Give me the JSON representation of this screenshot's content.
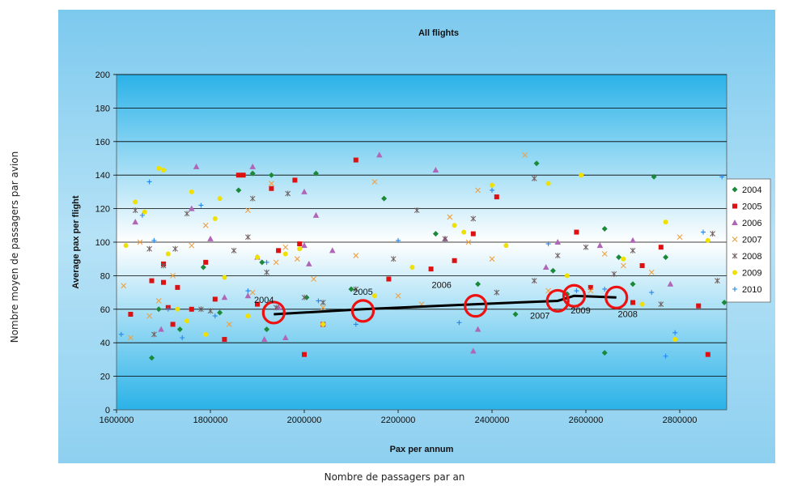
{
  "outer_labels": {
    "y": "Nombre moyen de passagers par avion",
    "x": "Nombre de passagers par an"
  },
  "chart_data": {
    "type": "scatter",
    "title": "All flights",
    "xlabel": "Pax per annum",
    "ylabel": "Average pax per flight",
    "xlim": [
      1600000,
      2900000
    ],
    "ylim": [
      0,
      200
    ],
    "xticks": [
      1600000,
      1800000,
      2000000,
      2200000,
      2400000,
      2600000,
      2800000
    ],
    "yticks": [
      0,
      20,
      40,
      60,
      80,
      100,
      120,
      140,
      160,
      180,
      200
    ],
    "grid": "horizontal",
    "legend_position": "right",
    "series": [
      {
        "name": "2004",
        "color": "#1a8a3a",
        "marker": "diamond",
        "points": [
          [
            1675000,
            31
          ],
          [
            1690000,
            60
          ],
          [
            1735000,
            48
          ],
          [
            1785000,
            85
          ],
          [
            1820000,
            58
          ],
          [
            1860000,
            131
          ],
          [
            1890000,
            141
          ],
          [
            1910000,
            88
          ],
          [
            1920000,
            48
          ],
          [
            1930000,
            140
          ],
          [
            2005000,
            67
          ],
          [
            2025000,
            141
          ],
          [
            2100000,
            72
          ],
          [
            2170000,
            126
          ],
          [
            2280000,
            105
          ],
          [
            2370000,
            75
          ],
          [
            2450000,
            57
          ],
          [
            2495000,
            147
          ],
          [
            2530000,
            83
          ],
          [
            2560000,
            69
          ],
          [
            2640000,
            108
          ],
          [
            2640000,
            34
          ],
          [
            2670000,
            91
          ],
          [
            2700000,
            75
          ],
          [
            2745000,
            139
          ],
          [
            2770000,
            91
          ],
          [
            2895000,
            64
          ]
        ]
      },
      {
        "name": "2005",
        "color": "#dd1111",
        "marker": "square",
        "points": [
          [
            1630000,
            57
          ],
          [
            1675000,
            77
          ],
          [
            1700000,
            87
          ],
          [
            1700000,
            76
          ],
          [
            1710000,
            61
          ],
          [
            1720000,
            51
          ],
          [
            1730000,
            73
          ],
          [
            1760000,
            60
          ],
          [
            1790000,
            88
          ],
          [
            1810000,
            66
          ],
          [
            1830000,
            42
          ],
          [
            1860000,
            140
          ],
          [
            1870000,
            140
          ],
          [
            1900000,
            63
          ],
          [
            1930000,
            132
          ],
          [
            1945000,
            95
          ],
          [
            1980000,
            137
          ],
          [
            1990000,
            99
          ],
          [
            2000000,
            33
          ],
          [
            2040000,
            51
          ],
          [
            2110000,
            149
          ],
          [
            2180000,
            78
          ],
          [
            2270000,
            84
          ],
          [
            2320000,
            89
          ],
          [
            2360000,
            105
          ],
          [
            2410000,
            127
          ],
          [
            2580000,
            106
          ],
          [
            2610000,
            73
          ],
          [
            2720000,
            86
          ],
          [
            2760000,
            97
          ],
          [
            2840000,
            62
          ],
          [
            2860000,
            33
          ],
          [
            2700000,
            64
          ]
        ]
      },
      {
        "name": "2006",
        "color": "#b066b6",
        "marker": "triangle",
        "points": [
          [
            1640000,
            112
          ],
          [
            1695000,
            48
          ],
          [
            1760000,
            120
          ],
          [
            1770000,
            145
          ],
          [
            1800000,
            102
          ],
          [
            1830000,
            67
          ],
          [
            1880000,
            68
          ],
          [
            1890000,
            145
          ],
          [
            1900000,
            91
          ],
          [
            1915000,
            42
          ],
          [
            1945000,
            61
          ],
          [
            1960000,
            43
          ],
          [
            2000000,
            98
          ],
          [
            2000000,
            130
          ],
          [
            2010000,
            87
          ],
          [
            2025000,
            116
          ],
          [
            2060000,
            95
          ],
          [
            2160000,
            152
          ],
          [
            2280000,
            143
          ],
          [
            2300000,
            102
          ],
          [
            2360000,
            35
          ],
          [
            2370000,
            48
          ],
          [
            2515000,
            85
          ],
          [
            2540000,
            100
          ],
          [
            2630000,
            98
          ],
          [
            2700000,
            101
          ],
          [
            2780000,
            75
          ]
        ]
      },
      {
        "name": "2007",
        "color": "#f0a040",
        "marker": "x",
        "points": [
          [
            1615000,
            74
          ],
          [
            1630000,
            43
          ],
          [
            1650000,
            100
          ],
          [
            1670000,
            56
          ],
          [
            1690000,
            65
          ],
          [
            1720000,
            80
          ],
          [
            1760000,
            98
          ],
          [
            1790000,
            110
          ],
          [
            1840000,
            51
          ],
          [
            1880000,
            119
          ],
          [
            1890000,
            70
          ],
          [
            1930000,
            135
          ],
          [
            1940000,
            88
          ],
          [
            1960000,
            97
          ],
          [
            1985000,
            90
          ],
          [
            2020000,
            78
          ],
          [
            2040000,
            61
          ],
          [
            2110000,
            92
          ],
          [
            2150000,
            136
          ],
          [
            2200000,
            68
          ],
          [
            2250000,
            63
          ],
          [
            2310000,
            115
          ],
          [
            2350000,
            100
          ],
          [
            2370000,
            131
          ],
          [
            2400000,
            90
          ],
          [
            2470000,
            152
          ],
          [
            2520000,
            71
          ],
          [
            2610000,
            71
          ],
          [
            2640000,
            93
          ],
          [
            2680000,
            86
          ],
          [
            2740000,
            82
          ],
          [
            2800000,
            103
          ]
        ]
      },
      {
        "name": "2008",
        "color": "#706060",
        "marker": "star",
        "points": [
          [
            1640000,
            119
          ],
          [
            1670000,
            96
          ],
          [
            1680000,
            45
          ],
          [
            1700000,
            86
          ],
          [
            1725000,
            96
          ],
          [
            1750000,
            117
          ],
          [
            1780000,
            60
          ],
          [
            1800000,
            59
          ],
          [
            1850000,
            95
          ],
          [
            1880000,
            103
          ],
          [
            1890000,
            126
          ],
          [
            1920000,
            82
          ],
          [
            1940000,
            61
          ],
          [
            1965000,
            129
          ],
          [
            2000000,
            67
          ],
          [
            2040000,
            64
          ],
          [
            2110000,
            72
          ],
          [
            2190000,
            90
          ],
          [
            2240000,
            119
          ],
          [
            2300000,
            102
          ],
          [
            2360000,
            114
          ],
          [
            2410000,
            70
          ],
          [
            2490000,
            77
          ],
          [
            2490000,
            138
          ],
          [
            2540000,
            92
          ],
          [
            2600000,
            97
          ],
          [
            2660000,
            81
          ],
          [
            2700000,
            95
          ],
          [
            2760000,
            63
          ],
          [
            2870000,
            105
          ],
          [
            2880000,
            77
          ]
        ]
      },
      {
        "name": "2009",
        "color": "#f0e000",
        "marker": "circle",
        "points": [
          [
            1620000,
            98
          ],
          [
            1640000,
            124
          ],
          [
            1660000,
            118
          ],
          [
            1690000,
            144
          ],
          [
            1700000,
            143
          ],
          [
            1710000,
            93
          ],
          [
            1730000,
            60
          ],
          [
            1750000,
            53
          ],
          [
            1760000,
            130
          ],
          [
            1790000,
            45
          ],
          [
            1810000,
            114
          ],
          [
            1820000,
            126
          ],
          [
            1830000,
            79
          ],
          [
            1880000,
            56
          ],
          [
            1900000,
            91
          ],
          [
            1960000,
            93
          ],
          [
            1990000,
            96
          ],
          [
            2040000,
            51
          ],
          [
            2150000,
            68
          ],
          [
            2230000,
            85
          ],
          [
            2320000,
            110
          ],
          [
            2340000,
            106
          ],
          [
            2400000,
            134
          ],
          [
            2430000,
            98
          ],
          [
            2520000,
            135
          ],
          [
            2560000,
            80
          ],
          [
            2590000,
            140
          ],
          [
            2680000,
            90
          ],
          [
            2720000,
            63
          ],
          [
            2770000,
            112
          ],
          [
            2790000,
            42
          ],
          [
            2860000,
            101
          ]
        ]
      },
      {
        "name": "2010",
        "color": "#2288ee",
        "marker": "plus",
        "points": [
          [
            1610000,
            45
          ],
          [
            1655000,
            116
          ],
          [
            1670000,
            136
          ],
          [
            1680000,
            101
          ],
          [
            1710000,
            60
          ],
          [
            1740000,
            43
          ],
          [
            1780000,
            122
          ],
          [
            1810000,
            56
          ],
          [
            1880000,
            71
          ],
          [
            1920000,
            88
          ],
          [
            2030000,
            65
          ],
          [
            2110000,
            51
          ],
          [
            2200000,
            101
          ],
          [
            2330000,
            52
          ],
          [
            2400000,
            131
          ],
          [
            2520000,
            99
          ],
          [
            2580000,
            71
          ],
          [
            2640000,
            72
          ],
          [
            2740000,
            70
          ],
          [
            2770000,
            32
          ],
          [
            2790000,
            46
          ],
          [
            2850000,
            106
          ],
          [
            2890000,
            139
          ]
        ]
      }
    ],
    "trend_line": [
      [
        1935000,
        57
      ],
      [
        2125000,
        60
      ],
      [
        2365000,
        63
      ],
      [
        2540000,
        65
      ],
      [
        2575000,
        68
      ],
      [
        2665000,
        67
      ]
    ],
    "highlights": [
      {
        "label": "2004",
        "x": 1935000,
        "y": 58
      },
      {
        "label": "2005",
        "x": 2125000,
        "y": 59
      },
      {
        "label": "2006",
        "x": 2365000,
        "y": 62
      },
      {
        "label": "2007",
        "x": 2540000,
        "y": 65
      },
      {
        "label": "2009",
        "x": 2575000,
        "y": 68
      },
      {
        "label": "2008",
        "x": 2665000,
        "y": 67
      }
    ]
  }
}
